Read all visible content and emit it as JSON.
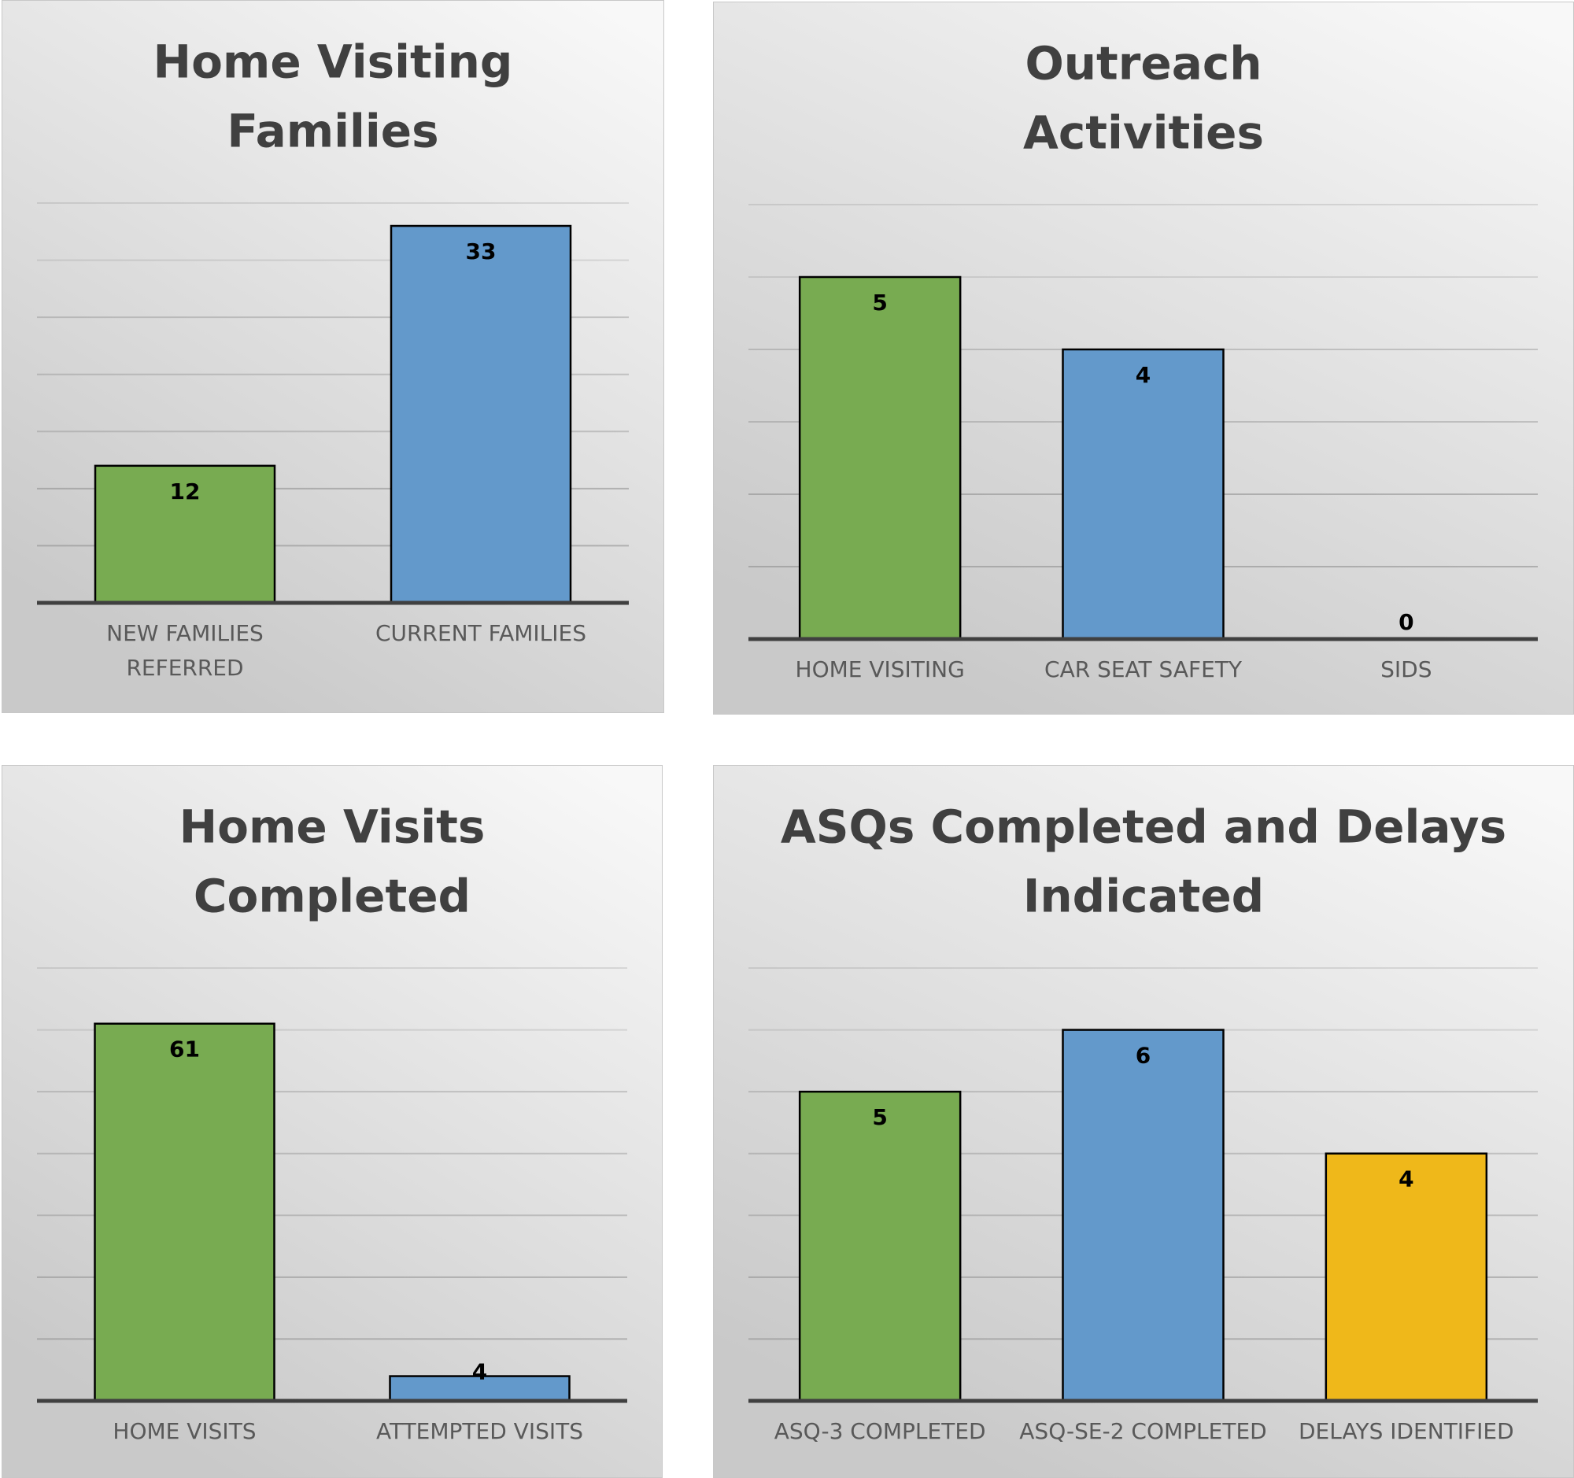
{
  "colors": {
    "green": "#78AB51",
    "blue": "#6399CB",
    "yellow": "#EFB81A",
    "grid": "#c4c4c4",
    "axis": "#404040",
    "title": "#404040",
    "category_label": "#595959"
  },
  "chart_data": [
    {
      "type": "bar",
      "title": "Home Visiting Families",
      "title_lines": [
        "Home Visiting",
        "Families"
      ],
      "categories": [
        "NEW FAMILIES REFERRED",
        "CURRENT FAMILIES"
      ],
      "category_lines": [
        [
          "NEW FAMILIES",
          "REFERRED"
        ],
        [
          "CURRENT FAMILIES"
        ]
      ],
      "values": [
        12,
        33
      ],
      "data_labels": [
        "12",
        "33"
      ],
      "bar_colors": [
        "#78AB51",
        "#6399CB"
      ],
      "ylim": [
        0,
        35
      ],
      "grid": true,
      "legend": "none"
    },
    {
      "type": "bar",
      "title": "Outreach Activities",
      "title_lines": [
        "Outreach",
        "Activities"
      ],
      "categories": [
        "HOME VISITING",
        "CAR SEAT SAFETY",
        "SIDS"
      ],
      "category_lines": [
        [
          "HOME VISITING"
        ],
        [
          "CAR SEAT SAFETY"
        ],
        [
          "SIDS"
        ]
      ],
      "values": [
        5,
        4,
        0
      ],
      "data_labels": [
        "5",
        "4",
        "0"
      ],
      "bar_colors": [
        "#78AB51",
        "#6399CB",
        "#EFB81A"
      ],
      "ylim": [
        0,
        6
      ],
      "grid": true,
      "legend": "none"
    },
    {
      "type": "bar",
      "title": "Home Visits Completed",
      "title_lines": [
        "Home Visits",
        "Completed"
      ],
      "categories": [
        "HOME VISITS",
        "ATTEMPTED VISITS"
      ],
      "category_lines": [
        [
          "HOME VISITS"
        ],
        [
          "ATTEMPTED VISITS"
        ]
      ],
      "values": [
        61,
        4
      ],
      "data_labels": [
        "61",
        "4"
      ],
      "bar_colors": [
        "#78AB51",
        "#6399CB"
      ],
      "ylim": [
        0,
        70
      ],
      "grid": true,
      "legend": "none"
    },
    {
      "type": "bar",
      "title": "ASQs Completed and Delays Indicated",
      "title_lines": [
        "ASQs Completed and Delays",
        "Indicated"
      ],
      "categories": [
        "ASQ-3 COMPLETED",
        "ASQ-SE-2 COMPLETED",
        "DELAYS IDENTIFIED"
      ],
      "category_lines": [
        [
          "ASQ-3 COMPLETED"
        ],
        [
          "ASQ-SE-2 COMPLETED"
        ],
        [
          "DELAYS IDENTIFIED"
        ]
      ],
      "values": [
        5,
        6,
        4
      ],
      "data_labels": [
        "5",
        "6",
        "4"
      ],
      "bar_colors": [
        "#78AB51",
        "#6399CB",
        "#EFB81A"
      ],
      "ylim": [
        0,
        7
      ],
      "grid": true,
      "legend": "none"
    }
  ]
}
